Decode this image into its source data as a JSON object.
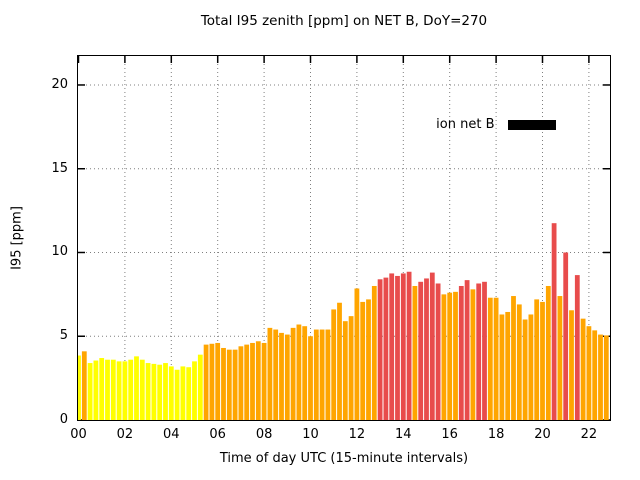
{
  "chart": {
    "title": "Total I95 zenith [ppm] on NET B, DoY=270",
    "xlabel": "Time of day UTC (15-minute intervals)",
    "ylabel": "I95 [ppm]",
    "legend": {
      "label": "ion net B",
      "swatch_color": "#000000"
    }
  },
  "chart_data": {
    "type": "bar",
    "title": "Total I95 zenith [ppm] on NET B, DoY=270",
    "xlabel": "Time of day UTC (15-minute intervals)",
    "ylabel": "I95 [ppm]",
    "legend_entries": [
      "ion net B"
    ],
    "legend_position": "top-right-inside",
    "grid": "dotted",
    "grid_color": "#7f7f7f",
    "interval_minutes": 15,
    "xticks": [
      "00",
      "02",
      "04",
      "06",
      "08",
      "10",
      "12",
      "14",
      "16",
      "18",
      "20",
      "22"
    ],
    "yticks": [
      0,
      5,
      10,
      15,
      20
    ],
    "ylim": [
      0,
      21.73
    ],
    "xlim_hours": [
      0,
      22.93
    ],
    "x": [
      "00:00",
      "00:15",
      "00:30",
      "00:45",
      "01:00",
      "01:15",
      "01:30",
      "01:45",
      "02:00",
      "02:15",
      "02:30",
      "02:45",
      "03:00",
      "03:15",
      "03:30",
      "03:45",
      "04:00",
      "04:15",
      "04:30",
      "04:45",
      "05:00",
      "05:15",
      "05:30",
      "05:45",
      "06:00",
      "06:15",
      "06:30",
      "06:45",
      "07:00",
      "07:15",
      "07:30",
      "07:45",
      "08:00",
      "08:15",
      "08:30",
      "08:45",
      "09:00",
      "09:15",
      "09:30",
      "09:45",
      "10:00",
      "10:15",
      "10:30",
      "10:45",
      "11:00",
      "11:15",
      "11:30",
      "11:45",
      "12:00",
      "12:15",
      "12:30",
      "12:45",
      "13:00",
      "13:15",
      "13:30",
      "13:45",
      "14:00",
      "14:15",
      "14:30",
      "14:45",
      "15:00",
      "15:15",
      "15:30",
      "15:45",
      "16:00",
      "16:15",
      "16:30",
      "16:45",
      "17:00",
      "17:15",
      "17:30",
      "17:45",
      "18:00",
      "18:15",
      "18:30",
      "18:45",
      "19:00",
      "19:15",
      "19:30",
      "19:45",
      "20:00",
      "20:15",
      "20:30",
      "20:45",
      "21:00",
      "21:15",
      "21:30",
      "21:45",
      "22:00",
      "22:15",
      "22:30",
      "22:45"
    ],
    "values": [
      3.85,
      4.1,
      3.4,
      3.55,
      3.7,
      3.6,
      3.6,
      3.5,
      3.5,
      3.6,
      3.8,
      3.6,
      3.4,
      3.35,
      3.3,
      3.4,
      3.2,
      3.0,
      3.2,
      3.15,
      3.5,
      3.9,
      4.5,
      4.55,
      4.6,
      4.3,
      4.2,
      4.2,
      4.4,
      4.5,
      4.6,
      4.7,
      4.6,
      5.5,
      5.4,
      5.2,
      5.1,
      5.5,
      5.7,
      5.6,
      5.0,
      5.4,
      5.4,
      5.4,
      6.6,
      7.0,
      5.9,
      6.2,
      7.85,
      7.05,
      7.2,
      8.0,
      8.4,
      8.5,
      8.75,
      8.6,
      8.75,
      8.85,
      8.0,
      8.25,
      8.45,
      8.8,
      8.15,
      7.5,
      7.6,
      7.65,
      8.0,
      8.35,
      7.8,
      8.15,
      8.25,
      7.3,
      7.3,
      6.3,
      6.45,
      7.4,
      6.9,
      6.0,
      6.3,
      7.2,
      7.05,
      8.0,
      11.75,
      7.4,
      10.0,
      6.55,
      8.65,
      6.05,
      5.6,
      5.35,
      5.1,
      5.05
    ],
    "colors": "yoyyyyyyyyyyyyyyyyyyyyoooooooooooooooooooooooooooooorrrrrrorrrrooorrorrooooooooooorororooooo",
    "palette": {
      "y": "#ffff00",
      "o": "#ffa500",
      "r": "#e84c4c"
    },
    "bar_outline": "none",
    "axis_color": "#000000",
    "background": "#ffffff"
  }
}
